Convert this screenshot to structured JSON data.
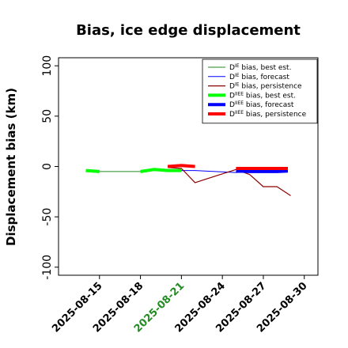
{
  "chart_data": {
    "type": "line",
    "title": "Bias, ice edge displacement",
    "xlabel": "",
    "ylabel": "Displacement bias (km)",
    "xlim": [
      "2025-08-12",
      "2025-08-31"
    ],
    "ylim": [
      -108,
      108
    ],
    "yticks": [
      100,
      50,
      0,
      -50,
      -100
    ],
    "xticks": [
      "2025-08-15",
      "2025-08-18",
      "2025-08-21",
      "2025-08-24",
      "2025-08-27",
      "2025-08-30"
    ],
    "highlight_tick": "2025-08-21",
    "highlight_color": "#228b22",
    "grid": false,
    "legend_position": "top-right",
    "series": [
      {
        "name": "D^IE bias, best est.",
        "label_main": "D",
        "label_sup": "IE",
        "label_rest": " bias, best est.",
        "color": "#228b22",
        "width": 1,
        "points": [
          [
            "2025-08-14",
            -4
          ],
          [
            "2025-08-15",
            -5
          ],
          [
            "2025-08-18",
            -5
          ],
          [
            "2025-08-19",
            -3
          ],
          [
            "2025-08-20",
            -4
          ],
          [
            "2025-08-21",
            -4
          ]
        ]
      },
      {
        "name": "D^IE bias, forecast",
        "label_main": "D",
        "label_sup": "IE",
        "label_rest": " bias, forecast",
        "color": "#0000ff",
        "width": 1,
        "points": [
          [
            "2025-08-20",
            -3.5
          ],
          [
            "2025-08-21",
            -4
          ],
          [
            "2025-08-22",
            -4
          ],
          [
            "2025-08-25",
            -6
          ],
          [
            "2025-08-26",
            -5.5
          ],
          [
            "2025-08-27",
            -5.5
          ],
          [
            "2025-08-28",
            -5
          ],
          [
            "2025-08-28.8",
            -4.5
          ]
        ]
      },
      {
        "name": "D^IE bias, persistence",
        "label_main": "D",
        "label_sup": "IE",
        "label_rest": " bias, persistence",
        "color": "#8b0000",
        "width": 1.2,
        "points": [
          [
            "2025-08-20",
            -1
          ],
          [
            "2025-08-21",
            -2
          ],
          [
            "2025-08-22",
            -16
          ],
          [
            "2025-08-25",
            -3
          ],
          [
            "2025-08-26",
            -8
          ],
          [
            "2025-08-27",
            -20
          ],
          [
            "2025-08-28",
            -20
          ],
          [
            "2025-08-29",
            -29
          ]
        ]
      },
      {
        "name": "D^IIEE bias, best est.",
        "label_main": "D",
        "label_sup": "IIEE",
        "label_rest": " bias, best est.",
        "color": "#00ff00",
        "width": 4,
        "points": [
          [
            "2025-08-14",
            -4
          ],
          [
            "2025-08-15",
            -5
          ]
        ],
        "points2": [
          [
            "2025-08-18",
            -5
          ],
          [
            "2025-08-19",
            -3
          ],
          [
            "2025-08-20",
            -4
          ],
          [
            "2025-08-21",
            -4
          ]
        ]
      },
      {
        "name": "D^IIEE bias, forecast",
        "label_main": "D",
        "label_sup": "IIEE",
        "label_rest": " bias, forecast",
        "color": "#0000ff",
        "width": 4,
        "points": [
          [
            "2025-08-25",
            -4.5
          ],
          [
            "2025-08-26",
            -5
          ],
          [
            "2025-08-27",
            -5
          ],
          [
            "2025-08-28",
            -5
          ],
          [
            "2025-08-28.8",
            -4.5
          ]
        ]
      },
      {
        "name": "D^IIEE bias, persistence",
        "label_main": "D",
        "label_sup": "IIEE",
        "label_rest": " bias, persistence",
        "color": "#ff0000",
        "width": 4,
        "points": [
          [
            "2025-08-20",
            0
          ],
          [
            "2025-08-21",
            1
          ],
          [
            "2025-08-22",
            0
          ]
        ],
        "points2": [
          [
            "2025-08-25",
            -2
          ],
          [
            "2025-08-26",
            -2
          ],
          [
            "2025-08-27",
            -2
          ],
          [
            "2025-08-28",
            -2
          ],
          [
            "2025-08-28.8",
            -2
          ]
        ]
      }
    ]
  }
}
